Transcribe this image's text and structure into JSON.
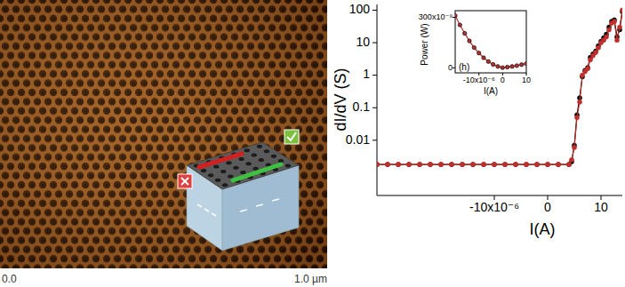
{
  "chart_data": [
    {
      "type": "line",
      "x_label": "I(A)",
      "y_label": "dI/dV (S)",
      "log": "y",
      "grid": false,
      "xlim": [
        -3.2e-05,
        1.4e-05
      ],
      "xticks": [
        {
          "value": -1e-05,
          "label": "-10x10⁻⁶"
        },
        0,
        {
          "value": 1e-05,
          "label": "10"
        }
      ],
      "ylim": [
        0.0002,
        150
      ],
      "yticks": [
        0.01,
        0.1,
        1,
        10,
        100
      ],
      "x": [
        -3.2e-05,
        -3e-05,
        -2.8e-05,
        -2.6e-05,
        -2.4e-05,
        -2.2e-05,
        -2e-05,
        -1.8e-05,
        -1.6e-05,
        -1.4e-05,
        -1.2e-05,
        -1e-05,
        -8e-06,
        -6e-06,
        -4e-06,
        -2e-06,
        0,
        2e-06,
        4e-06,
        4.5e-06,
        5e-06,
        5.5e-06,
        6e-06,
        6.5e-06,
        7e-06,
        7.5e-06,
        8e-06,
        8.5e-06,
        9e-06,
        9.5e-06,
        1e-05,
        1.05e-05,
        1.1e-05,
        1.15e-05,
        1.2e-05,
        1.25e-05,
        1.3e-05,
        1.35e-05,
        1.4e-05
      ],
      "series": [
        {
          "color": "#000000",
          "marker": "circle",
          "line_style": "solid",
          "values": [
            0.0018,
            0.0018,
            0.0018,
            0.0018,
            0.0018,
            0.0018,
            0.0018,
            0.0018,
            0.0018,
            0.0018,
            0.0018,
            0.0018,
            0.0018,
            0.0018,
            0.0018,
            0.0018,
            0.0018,
            0.0018,
            0.0018,
            0.0022,
            0.007,
            0.06,
            0.2,
            0.9,
            1.4,
            1.7,
            3.5,
            4.5,
            5.5,
            8,
            11,
            14,
            18,
            30,
            45,
            50,
            15,
            25,
            90
          ]
        },
        {
          "color": "#c0302a",
          "marker": "circle",
          "line_style": "solid",
          "values": [
            0.0018,
            0.0018,
            0.0018,
            0.0018,
            0.0018,
            0.0018,
            0.0018,
            0.0018,
            0.0018,
            0.0018,
            0.0018,
            0.0018,
            0.0018,
            0.0018,
            0.0018,
            0.0018,
            0.0018,
            0.0018,
            0.0018,
            0.0025,
            0.006,
            0.05,
            0.15,
            1,
            1.3,
            1.6,
            3,
            4,
            5,
            7,
            10,
            12,
            15,
            25,
            40,
            45,
            12,
            30,
            100
          ]
        }
      ]
    },
    {
      "type": "line",
      "x_label": "I(A)",
      "y_label": "Power (W)",
      "annotation": "(h)",
      "grid": false,
      "xlim": [
        -2e-05,
        1e-05
      ],
      "xticks": [
        {
          "value": -1e-05,
          "label": "-10x10⁻⁶"
        },
        0,
        {
          "value": 1e-05,
          "label": "10"
        }
      ],
      "ylim": [
        -3e-08,
        3.4e-07
      ],
      "yticks": [
        0,
        {
          "value": 3e-07,
          "label": "300x10⁻⁹"
        }
      ],
      "x": [
        -2e-05,
        -1.8e-05,
        -1.6e-05,
        -1.4e-05,
        -1.2e-05,
        -1e-05,
        -8e-06,
        -6e-06,
        -4e-06,
        -2e-06,
        0,
        2e-06,
        4e-06,
        6e-06,
        8e-06,
        1e-05
      ],
      "series": [
        {
          "color": "#b03030",
          "marker": "circle",
          "line_style": "solid",
          "values": [
            3.1e-07,
            2.55e-07,
            2.05e-07,
            1.6e-07,
            1.2e-07,
            8.8e-08,
            6e-08,
            3.7e-08,
            2e-08,
            8e-09,
            1e-09,
            4e-09,
            8e-09,
            1.3e-08,
            1.9e-08,
            2.5e-08
          ]
        }
      ]
    }
  ],
  "image": {
    "scale_start": "0.0",
    "scale_end": "1.0 µm"
  }
}
